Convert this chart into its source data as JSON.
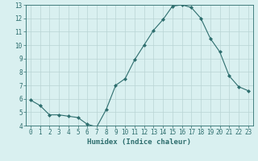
{
  "x": [
    0,
    1,
    2,
    3,
    4,
    5,
    6,
    7,
    8,
    9,
    10,
    11,
    12,
    13,
    14,
    15,
    16,
    17,
    18,
    19,
    20,
    21,
    22,
    23
  ],
  "y": [
    5.9,
    5.5,
    4.8,
    4.8,
    4.7,
    4.6,
    4.1,
    3.9,
    5.2,
    7.0,
    7.5,
    8.9,
    10.0,
    11.1,
    11.9,
    12.9,
    13.0,
    12.8,
    12.0,
    10.5,
    9.5,
    7.7,
    6.9,
    6.6
  ],
  "line_color": "#2e6e6e",
  "marker": "D",
  "marker_size": 2,
  "bg_color": "#d9f0f0",
  "grid_color": "#b8d4d4",
  "xlabel": "Humidex (Indice chaleur)",
  "xlim_min": -0.5,
  "xlim_max": 23.5,
  "ylim_min": 4,
  "ylim_max": 13,
  "yticks": [
    4,
    5,
    6,
    7,
    8,
    9,
    10,
    11,
    12,
    13
  ],
  "xticks": [
    0,
    1,
    2,
    3,
    4,
    5,
    6,
    7,
    8,
    9,
    10,
    11,
    12,
    13,
    14,
    15,
    16,
    17,
    18,
    19,
    20,
    21,
    22,
    23
  ],
  "tick_color": "#2e6e6e",
  "label_fontsize": 6.5,
  "tick_fontsize": 5.5
}
